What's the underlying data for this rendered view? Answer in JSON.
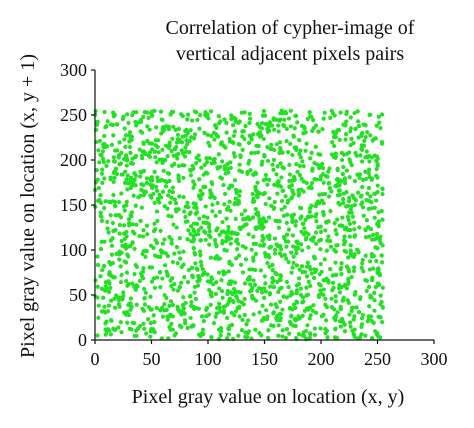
{
  "chart_data": {
    "type": "scatter",
    "title_lines": [
      "Correlation of cypher-image of",
      "vertical adjacent pixels pairs"
    ],
    "xlabel": "Pixel gray value on location (x, y)",
    "ylabel": "Pixel gray value on location (x, y + 1)",
    "xlim": [
      0,
      300
    ],
    "ylim": [
      0,
      300
    ],
    "xticks": [
      "0",
      "50",
      "100",
      "150",
      "200",
      "250",
      "300"
    ],
    "yticks": [
      "0",
      "50",
      "100",
      "150",
      "200",
      "250",
      "300"
    ],
    "grid": false,
    "legend": "none",
    "series": [
      {
        "color": "#22e022",
        "distribution": "uniform",
        "x_range": [
          0,
          255
        ],
        "y_range": [
          0,
          255
        ],
        "point_count": 2000
      }
    ]
  }
}
